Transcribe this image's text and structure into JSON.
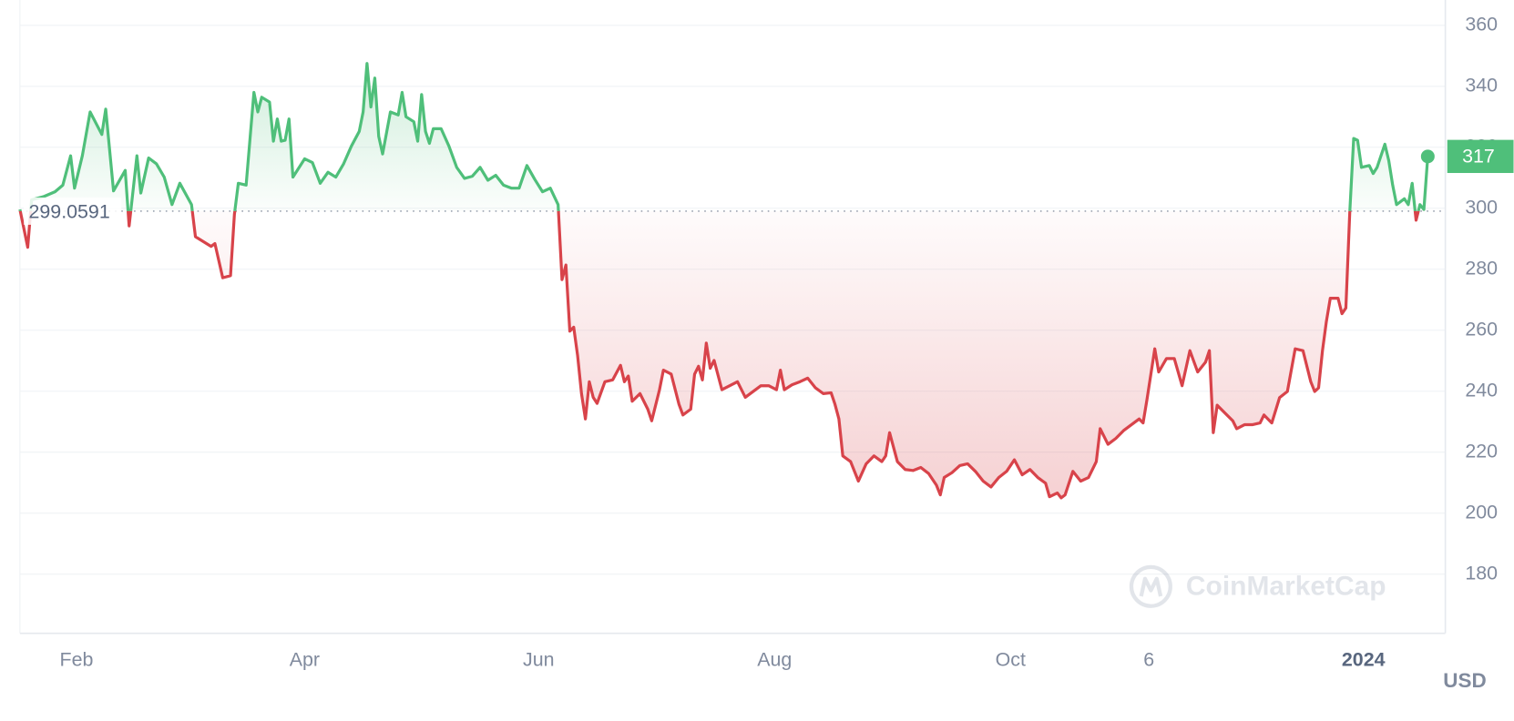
{
  "chart_data": {
    "type": "line",
    "series": [
      {
        "color": "#4fbf7a",
        "color_below": "#d8434a",
        "x": [
          0,
          2,
          3,
          6,
          9,
          11,
          13,
          14,
          16,
          18,
          21,
          22,
          24,
          27,
          28,
          30,
          31,
          33,
          35,
          37,
          39,
          41,
          44,
          45,
          49,
          50,
          52,
          54,
          55,
          56,
          58,
          60,
          61,
          62,
          64,
          65,
          66,
          67,
          68,
          69,
          70,
          73,
          75,
          77,
          79,
          81,
          83,
          85,
          87,
          88,
          89,
          90,
          91,
          92,
          93,
          95,
          97,
          98,
          99,
          101,
          102,
          103,
          104,
          105,
          106,
          108,
          110,
          112,
          114,
          116,
          118,
          120,
          122,
          124,
          126,
          128,
          130,
          132,
          134,
          136,
          138,
          139,
          140,
          141,
          142,
          143,
          144,
          145,
          146,
          147,
          148,
          150,
          152,
          154,
          155,
          156,
          157,
          159,
          161,
          162,
          164,
          165,
          167,
          169,
          170,
          172,
          173,
          174,
          175,
          176,
          177,
          178,
          180,
          182,
          184,
          186,
          188,
          190,
          192,
          194,
          195,
          196,
          198,
          200,
          202,
          204,
          206,
          208,
          209,
          210,
          211,
          213,
          215,
          217,
          219,
          221,
          222,
          223,
          225,
          227,
          229,
          231,
          233,
          235,
          236,
          237,
          239,
          241,
          243,
          245,
          247,
          249,
          251,
          253,
          255,
          257,
          259,
          261,
          263,
          264,
          266,
          267,
          268,
          270,
          272,
          274,
          276,
          277,
          279,
          281,
          283,
          285,
          287,
          288,
          289,
          291,
          292,
          294,
          296,
          298,
          300,
          302,
          304,
          305,
          306,
          307,
          309,
          311,
          312,
          314,
          316,
          318,
          319,
          321,
          323,
          325,
          327,
          329,
          331,
          332,
          333,
          334,
          335,
          336,
          338,
          339,
          340,
          341,
          342,
          343,
          344,
          346,
          347,
          348,
          349,
          350,
          351,
          352,
          353,
          355,
          356,
          357,
          358,
          359,
          360,
          361
        ],
        "values": [
          299.6,
          287.2,
          302.8,
          303.8,
          305.4,
          307.6,
          317.2,
          306.6,
          317.2,
          331.6,
          324.2,
          332.5,
          305.7,
          312.4,
          294.2,
          317.2,
          305.0,
          316.5,
          314.6,
          310.2,
          301.2,
          308.2,
          301.2,
          290.7,
          287.5,
          288.4,
          277.2,
          277.9,
          298.0,
          308.2,
          307.6,
          338.0,
          331.6,
          336.4,
          334.8,
          322.0,
          329.3,
          322.0,
          322.3,
          329.3,
          310.2,
          316.2,
          315.0,
          308.2,
          311.8,
          310.2,
          314.6,
          320.4,
          325.2,
          331.6,
          347.5,
          333.2,
          342.7,
          323.6,
          317.8,
          331.6,
          330.6,
          338.0,
          330.0,
          328.4,
          322.0,
          337.3,
          325.2,
          321.3,
          326.1,
          326.1,
          320.4,
          313.4,
          309.8,
          310.5,
          313.4,
          309.2,
          310.8,
          307.6,
          306.6,
          306.6,
          314.0,
          309.5,
          305.4,
          306.6,
          301.2,
          276.6,
          281.4,
          259.7,
          261.0,
          251.7,
          239.2,
          230.9,
          243.1,
          238.0,
          236.0,
          243.1,
          243.7,
          248.5,
          243.1,
          245.0,
          236.7,
          239.2,
          234.1,
          230.3,
          240.5,
          246.9,
          245.6,
          235.7,
          232.2,
          234.1,
          245.6,
          248.2,
          243.7,
          255.8,
          247.5,
          250.1,
          240.5,
          241.8,
          243.1,
          238.0,
          239.9,
          241.8,
          241.8,
          240.5,
          246.9,
          240.5,
          242.1,
          243.1,
          244.3,
          241.1,
          239.2,
          239.5,
          235.7,
          230.9,
          218.8,
          216.9,
          210.5,
          216.2,
          218.8,
          216.9,
          218.8,
          226.4,
          216.9,
          214.3,
          214.0,
          215.0,
          213.0,
          209.2,
          206.0,
          211.7,
          213.3,
          215.6,
          216.2,
          213.7,
          210.5,
          208.6,
          211.7,
          213.7,
          217.5,
          212.6,
          214.3,
          211.7,
          209.8,
          205.4,
          206.6,
          205.0,
          206.0,
          213.7,
          210.5,
          211.7,
          216.9,
          227.7,
          222.6,
          224.5,
          227.1,
          229.0,
          230.9,
          229.6,
          237.3,
          253.9,
          246.3,
          250.7,
          250.7,
          241.8,
          253.3,
          246.3,
          249.5,
          253.3,
          226.4,
          235.4,
          232.8,
          230.3,
          227.7,
          229.0,
          229.0,
          229.6,
          232.2,
          229.6,
          237.9,
          239.9,
          253.9,
          253.3,
          243.1,
          239.9,
          241.1,
          253.3,
          262.9,
          270.5,
          270.5,
          265.4,
          267.3,
          298.7,
          322.9,
          322.3,
          313.4,
          314.0,
          311.4,
          313.4,
          317.2,
          321.0,
          315.6,
          307.6,
          301.2,
          303.1,
          301.2,
          308.2,
          296.1,
          301.2,
          299.6,
          317.0
        ]
      }
    ],
    "baseline": 299.0591,
    "last_price": 317,
    "xlim": [
      0,
      365.5
    ],
    "xticks": [
      {
        "value": 14.5,
        "label": "Feb"
      },
      {
        "value": 73,
        "label": "Apr"
      },
      {
        "value": 133,
        "label": "Jun"
      },
      {
        "value": 193.5,
        "label": "Aug"
      },
      {
        "value": 254,
        "label": "Oct"
      },
      {
        "value": 289.5,
        "label": "6"
      },
      {
        "value": 344.5,
        "label": "2024"
      }
    ],
    "bold_xtick": 6,
    "ylim": [
      160.6,
      368.3
    ],
    "yticks": [
      180,
      200,
      220,
      240,
      260,
      280,
      300,
      320,
      340,
      360
    ],
    "grid": true,
    "axis_unit": "USD",
    "watermark": "CoinMarketCap"
  }
}
